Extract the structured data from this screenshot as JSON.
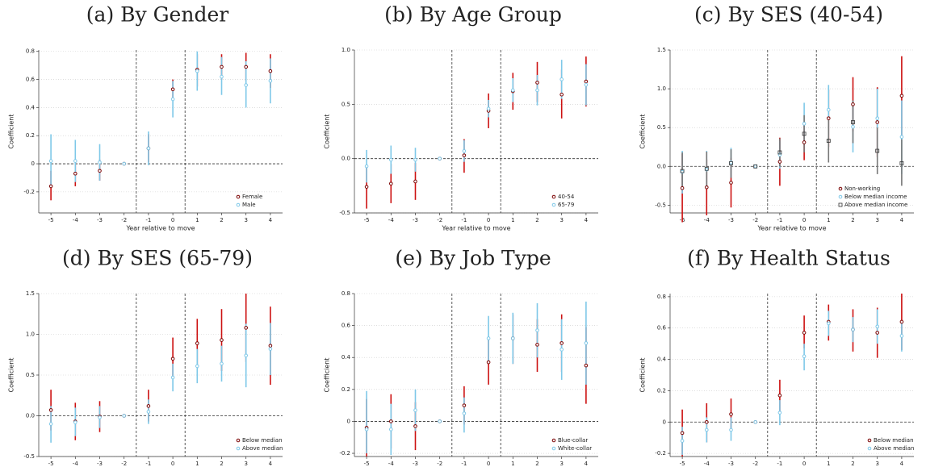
{
  "chart_data": [
    {
      "type": "errorbar",
      "title": "(a) By Gender",
      "xlabel": "Year relative to move",
      "ylabel": "Coefficient",
      "x": [
        -5,
        -4,
        -3,
        -2,
        -1,
        0,
        1,
        2,
        3,
        4
      ],
      "xlim": [
        -5.5,
        4.5
      ],
      "xticks": [
        -5,
        -4,
        -3,
        -2,
        -1,
        0,
        1,
        2,
        3,
        4
      ],
      "ylim": [
        -0.35,
        0.81
      ],
      "yticks": [
        -0.2,
        0,
        0.2,
        0.4,
        0.6,
        0.8
      ],
      "grid": true,
      "vlines": [
        -1.5,
        0.5
      ],
      "hline": 0,
      "legend": "lower right",
      "series": [
        {
          "name": "Female",
          "color": "#cc1111",
          "marker": "circle",
          "values": [
            -0.16,
            -0.07,
            -0.05,
            0,
            0.11,
            0.53,
            0.67,
            0.69,
            0.69,
            0.66
          ],
          "lower": [
            -0.26,
            -0.16,
            -0.12,
            0,
            0.01,
            0.46,
            0.55,
            0.6,
            0.59,
            0.54
          ],
          "upper": [
            -0.05,
            0.02,
            0.03,
            0,
            0.21,
            0.6,
            0.78,
            0.78,
            0.79,
            0.78
          ]
        },
        {
          "name": "Male",
          "color": "#7ec8e8",
          "marker": "circle",
          "values": [
            0.02,
            0.02,
            0.01,
            0,
            0.11,
            0.46,
            0.66,
            0.62,
            0.56,
            0.59
          ],
          "lower": [
            -0.17,
            -0.13,
            -0.12,
            0,
            -0.01,
            0.33,
            0.52,
            0.49,
            0.4,
            0.43
          ],
          "upper": [
            0.21,
            0.17,
            0.14,
            0,
            0.23,
            0.59,
            0.8,
            0.76,
            0.73,
            0.75
          ]
        }
      ]
    },
    {
      "type": "errorbar",
      "title": "(b) By Age Group",
      "xlabel": "Year relative to move",
      "ylabel": "Coefficient",
      "x": [
        -5,
        -4,
        -3,
        -2,
        -1,
        0,
        1,
        2,
        3,
        4
      ],
      "xlim": [
        -5.5,
        4.5
      ],
      "xticks": [
        -5,
        -4,
        -3,
        -2,
        -1,
        0,
        1,
        2,
        3,
        4
      ],
      "ylim": [
        -0.5,
        1.0
      ],
      "yticks": [
        -0.5,
        {
          "value": 0,
          "label": "0.0"
        },
        0.5,
        {
          "value": 1,
          "label": "1.0"
        }
      ],
      "grid": true,
      "vlines": [
        -1.5,
        0.5
      ],
      "hline": 0,
      "legend": "lower right",
      "series": [
        {
          "name": "40-54",
          "color": "#cc1111",
          "marker": "circle",
          "values": [
            -0.26,
            -0.23,
            -0.21,
            0,
            0.03,
            0.44,
            0.62,
            0.7,
            0.59,
            0.71
          ],
          "lower": [
            -0.46,
            -0.41,
            -0.38,
            0,
            -0.13,
            0.28,
            0.45,
            0.52,
            0.37,
            0.48
          ],
          "upper": [
            -0.06,
            -0.05,
            -0.04,
            0,
            0.18,
            0.6,
            0.79,
            0.89,
            0.82,
            0.94
          ]
        },
        {
          "name": "65-79",
          "color": "#7ec8e8",
          "marker": "circle",
          "values": [
            -0.07,
            -0.01,
            -0.01,
            0,
            0.07,
            0.46,
            0.63,
            0.63,
            0.73,
            0.68
          ],
          "lower": [
            -0.22,
            -0.14,
            -0.12,
            0,
            -0.03,
            0.38,
            0.52,
            0.49,
            0.55,
            0.49
          ],
          "upper": [
            0.08,
            0.12,
            0.1,
            0,
            0.17,
            0.54,
            0.74,
            0.77,
            0.91,
            0.87
          ]
        }
      ]
    },
    {
      "type": "errorbar",
      "title": "(c) By SES (40-54)",
      "xlabel": "Year relative to move",
      "ylabel": "Coefficient",
      "x": [
        -5,
        -4,
        -3,
        -2,
        -1,
        0,
        1,
        2,
        3,
        4
      ],
      "xlim": [
        -5.5,
        4.5
      ],
      "xticks": [
        -5,
        -4,
        -3,
        -2,
        -1,
        0,
        1,
        2,
        3,
        4
      ],
      "ylim": [
        -0.6,
        1.5
      ],
      "yticks": [
        -0.5,
        {
          "value": 0,
          "label": "0.0"
        },
        0.5,
        {
          "value": 1,
          "label": "1.0"
        },
        1.5
      ],
      "grid": true,
      "vlines": [
        -1.5,
        0.5
      ],
      "hline": 0,
      "legend": "lower right",
      "series": [
        {
          "name": "Non-working",
          "color": "#cc1111",
          "marker": "circle",
          "values": [
            -0.28,
            -0.27,
            -0.21,
            0,
            0.06,
            0.31,
            0.62,
            0.8,
            0.57,
            0.91
          ],
          "lower": [
            -0.72,
            -0.63,
            -0.53,
            0,
            -0.25,
            0.08,
            0.25,
            0.45,
            0.12,
            0.4
          ],
          "upper": [
            0.16,
            0.09,
            0.11,
            0,
            0.37,
            0.54,
            0.99,
            1.15,
            1.02,
            1.42
          ]
        },
        {
          "name": "Below median income",
          "color": "#7ec8e8",
          "marker": "circle",
          "values": [
            -0.07,
            -0.04,
            0.05,
            0,
            0.15,
            0.55,
            0.73,
            0.51,
            0.62,
            0.38
          ],
          "lower": [
            -0.35,
            -0.27,
            -0.14,
            0,
            -0.03,
            0.3,
            0.4,
            0.18,
            0.2,
            -0.1
          ],
          "upper": [
            0.2,
            0.2,
            0.24,
            0,
            0.33,
            0.82,
            1.05,
            0.85,
            1.0,
            0.85
          ]
        },
        {
          "name": "Above median income",
          "color": "#777777",
          "marker": "square",
          "values": [
            -0.06,
            -0.03,
            0.04,
            0,
            0.18,
            0.42,
            0.33,
            0.57,
            0.2,
            0.04
          ],
          "lower": [
            -0.3,
            -0.25,
            -0.15,
            0,
            0.0,
            0.18,
            0.05,
            0.3,
            -0.1,
            -0.25
          ],
          "upper": [
            0.18,
            0.19,
            0.22,
            0,
            0.36,
            0.66,
            0.6,
            0.85,
            0.5,
            0.35
          ]
        }
      ]
    },
    {
      "type": "errorbar",
      "title": "(d) By SES (65-79)",
      "xlabel": "Year relative to move",
      "ylabel": "Coefficient",
      "x": [
        -5,
        -4,
        -3,
        -2,
        -1,
        0,
        1,
        2,
        3,
        4
      ],
      "xlim": [
        -5.5,
        4.5
      ],
      "xticks": [
        -5,
        -4,
        -3,
        -2,
        -1,
        0,
        1,
        2,
        3,
        4
      ],
      "ylim": [
        -0.5,
        1.5
      ],
      "yticks": [
        -0.5,
        {
          "value": 0,
          "label": "0.0"
        },
        0.5,
        {
          "value": 1,
          "label": "1.0"
        },
        1.5
      ],
      "grid": true,
      "vlines": [
        -1.5,
        0.5
      ],
      "hline": 0,
      "legend": "lower right",
      "series": [
        {
          "name": "Below median",
          "color": "#cc1111",
          "marker": "circle",
          "values": [
            0.07,
            -0.07,
            -0.01,
            0,
            0.12,
            0.7,
            0.89,
            0.93,
            1.08,
            0.86
          ],
          "lower": [
            -0.18,
            -0.3,
            -0.2,
            0,
            -0.07,
            0.45,
            0.58,
            0.55,
            0.66,
            0.38
          ],
          "upper": [
            0.32,
            0.16,
            0.18,
            0,
            0.32,
            0.96,
            1.19,
            1.31,
            1.5,
            1.34
          ]
        },
        {
          "name": "Above median",
          "color": "#7ec8e8",
          "marker": "circle",
          "values": [
            -0.1,
            -0.08,
            -0.02,
            0,
            0.05,
            0.47,
            0.61,
            0.64,
            0.74,
            0.82
          ],
          "lower": [
            -0.33,
            -0.25,
            -0.15,
            0,
            -0.1,
            0.3,
            0.4,
            0.42,
            0.35,
            0.5
          ],
          "upper": [
            0.12,
            0.1,
            0.12,
            0,
            0.2,
            0.64,
            0.82,
            0.86,
            1.13,
            1.14
          ]
        }
      ]
    },
    {
      "type": "errorbar",
      "title": "(e) By Job Type",
      "xlabel": "Year relative to move",
      "ylabel": "Coefficient",
      "x": [
        -5,
        -4,
        -3,
        -2,
        -1,
        0,
        1,
        2,
        3,
        4
      ],
      "xlim": [
        -5.5,
        4.5
      ],
      "xticks": [
        -5,
        -4,
        -3,
        -2,
        -1,
        0,
        1,
        2,
        3,
        4
      ],
      "ylim": [
        -0.22,
        0.8
      ],
      "yticks": [
        -0.2,
        0,
        0.2,
        0.4,
        0.6,
        0.8
      ],
      "grid": true,
      "vlines": [
        -1.5,
        0.5
      ],
      "hline": 0,
      "legend": "lower right",
      "series": [
        {
          "name": "Blue-collar",
          "color": "#cc1111",
          "marker": "circle",
          "values": [
            -0.04,
            0.0,
            -0.03,
            0,
            0.1,
            0.37,
            0.52,
            0.48,
            0.49,
            0.35
          ],
          "lower": [
            -0.22,
            -0.17,
            -0.18,
            0,
            -0.02,
            0.23,
            0.36,
            0.31,
            0.31,
            0.11
          ],
          "upper": [
            0.14,
            0.17,
            0.12,
            0,
            0.22,
            0.51,
            0.67,
            0.64,
            0.67,
            0.59
          ]
        },
        {
          "name": "White-collar",
          "color": "#7ec8e8",
          "marker": "circle",
          "values": [
            -0.05,
            -0.05,
            0.07,
            0,
            0.05,
            0.52,
            0.52,
            0.57,
            0.45,
            0.49
          ],
          "lower": [
            -0.2,
            -0.21,
            -0.06,
            0,
            -0.07,
            0.38,
            0.36,
            0.4,
            0.26,
            0.23
          ],
          "upper": [
            0.19,
            0.11,
            0.2,
            0,
            0.15,
            0.66,
            0.68,
            0.74,
            0.64,
            0.75
          ]
        }
      ]
    },
    {
      "type": "errorbar",
      "title": "(f) By Health Status",
      "xlabel": "Year relative to move",
      "ylabel": "Coefficient",
      "x": [
        -5,
        -4,
        -3,
        -2,
        -1,
        0,
        1,
        2,
        3,
        4
      ],
      "xlim": [
        -5.5,
        4.5
      ],
      "xticks": [
        -5,
        -4,
        -3,
        -2,
        -1,
        0,
        1,
        2,
        3,
        4
      ],
      "ylim": [
        -0.22,
        0.82
      ],
      "yticks": [
        -0.2,
        0,
        0.2,
        0.4,
        0.6,
        0.8
      ],
      "grid": true,
      "vlines": [
        -1.5,
        0.5
      ],
      "hline": 0,
      "legend": "lower right",
      "series": [
        {
          "name": "Below median",
          "color": "#cc1111",
          "marker": "circle",
          "values": [
            -0.07,
            0.0,
            0.05,
            0,
            0.17,
            0.57,
            0.64,
            0.59,
            0.57,
            0.64
          ],
          "lower": [
            -0.22,
            -0.13,
            -0.05,
            0,
            0.07,
            0.47,
            0.52,
            0.45,
            0.41,
            0.46
          ],
          "upper": [
            0.08,
            0.12,
            0.15,
            0,
            0.27,
            0.68,
            0.75,
            0.72,
            0.73,
            0.82
          ]
        },
        {
          "name": "Above median",
          "color": "#7ec8e8",
          "marker": "circle",
          "values": [
            -0.12,
            -0.05,
            -0.05,
            0,
            0.06,
            0.42,
            0.63,
            0.59,
            0.61,
            0.55
          ],
          "lower": [
            -0.21,
            -0.13,
            -0.12,
            0,
            -0.02,
            0.33,
            0.55,
            0.51,
            0.5,
            0.45
          ],
          "upper": [
            -0.03,
            0.03,
            0.03,
            0,
            0.14,
            0.5,
            0.71,
            0.67,
            0.72,
            0.65
          ]
        }
      ]
    }
  ]
}
